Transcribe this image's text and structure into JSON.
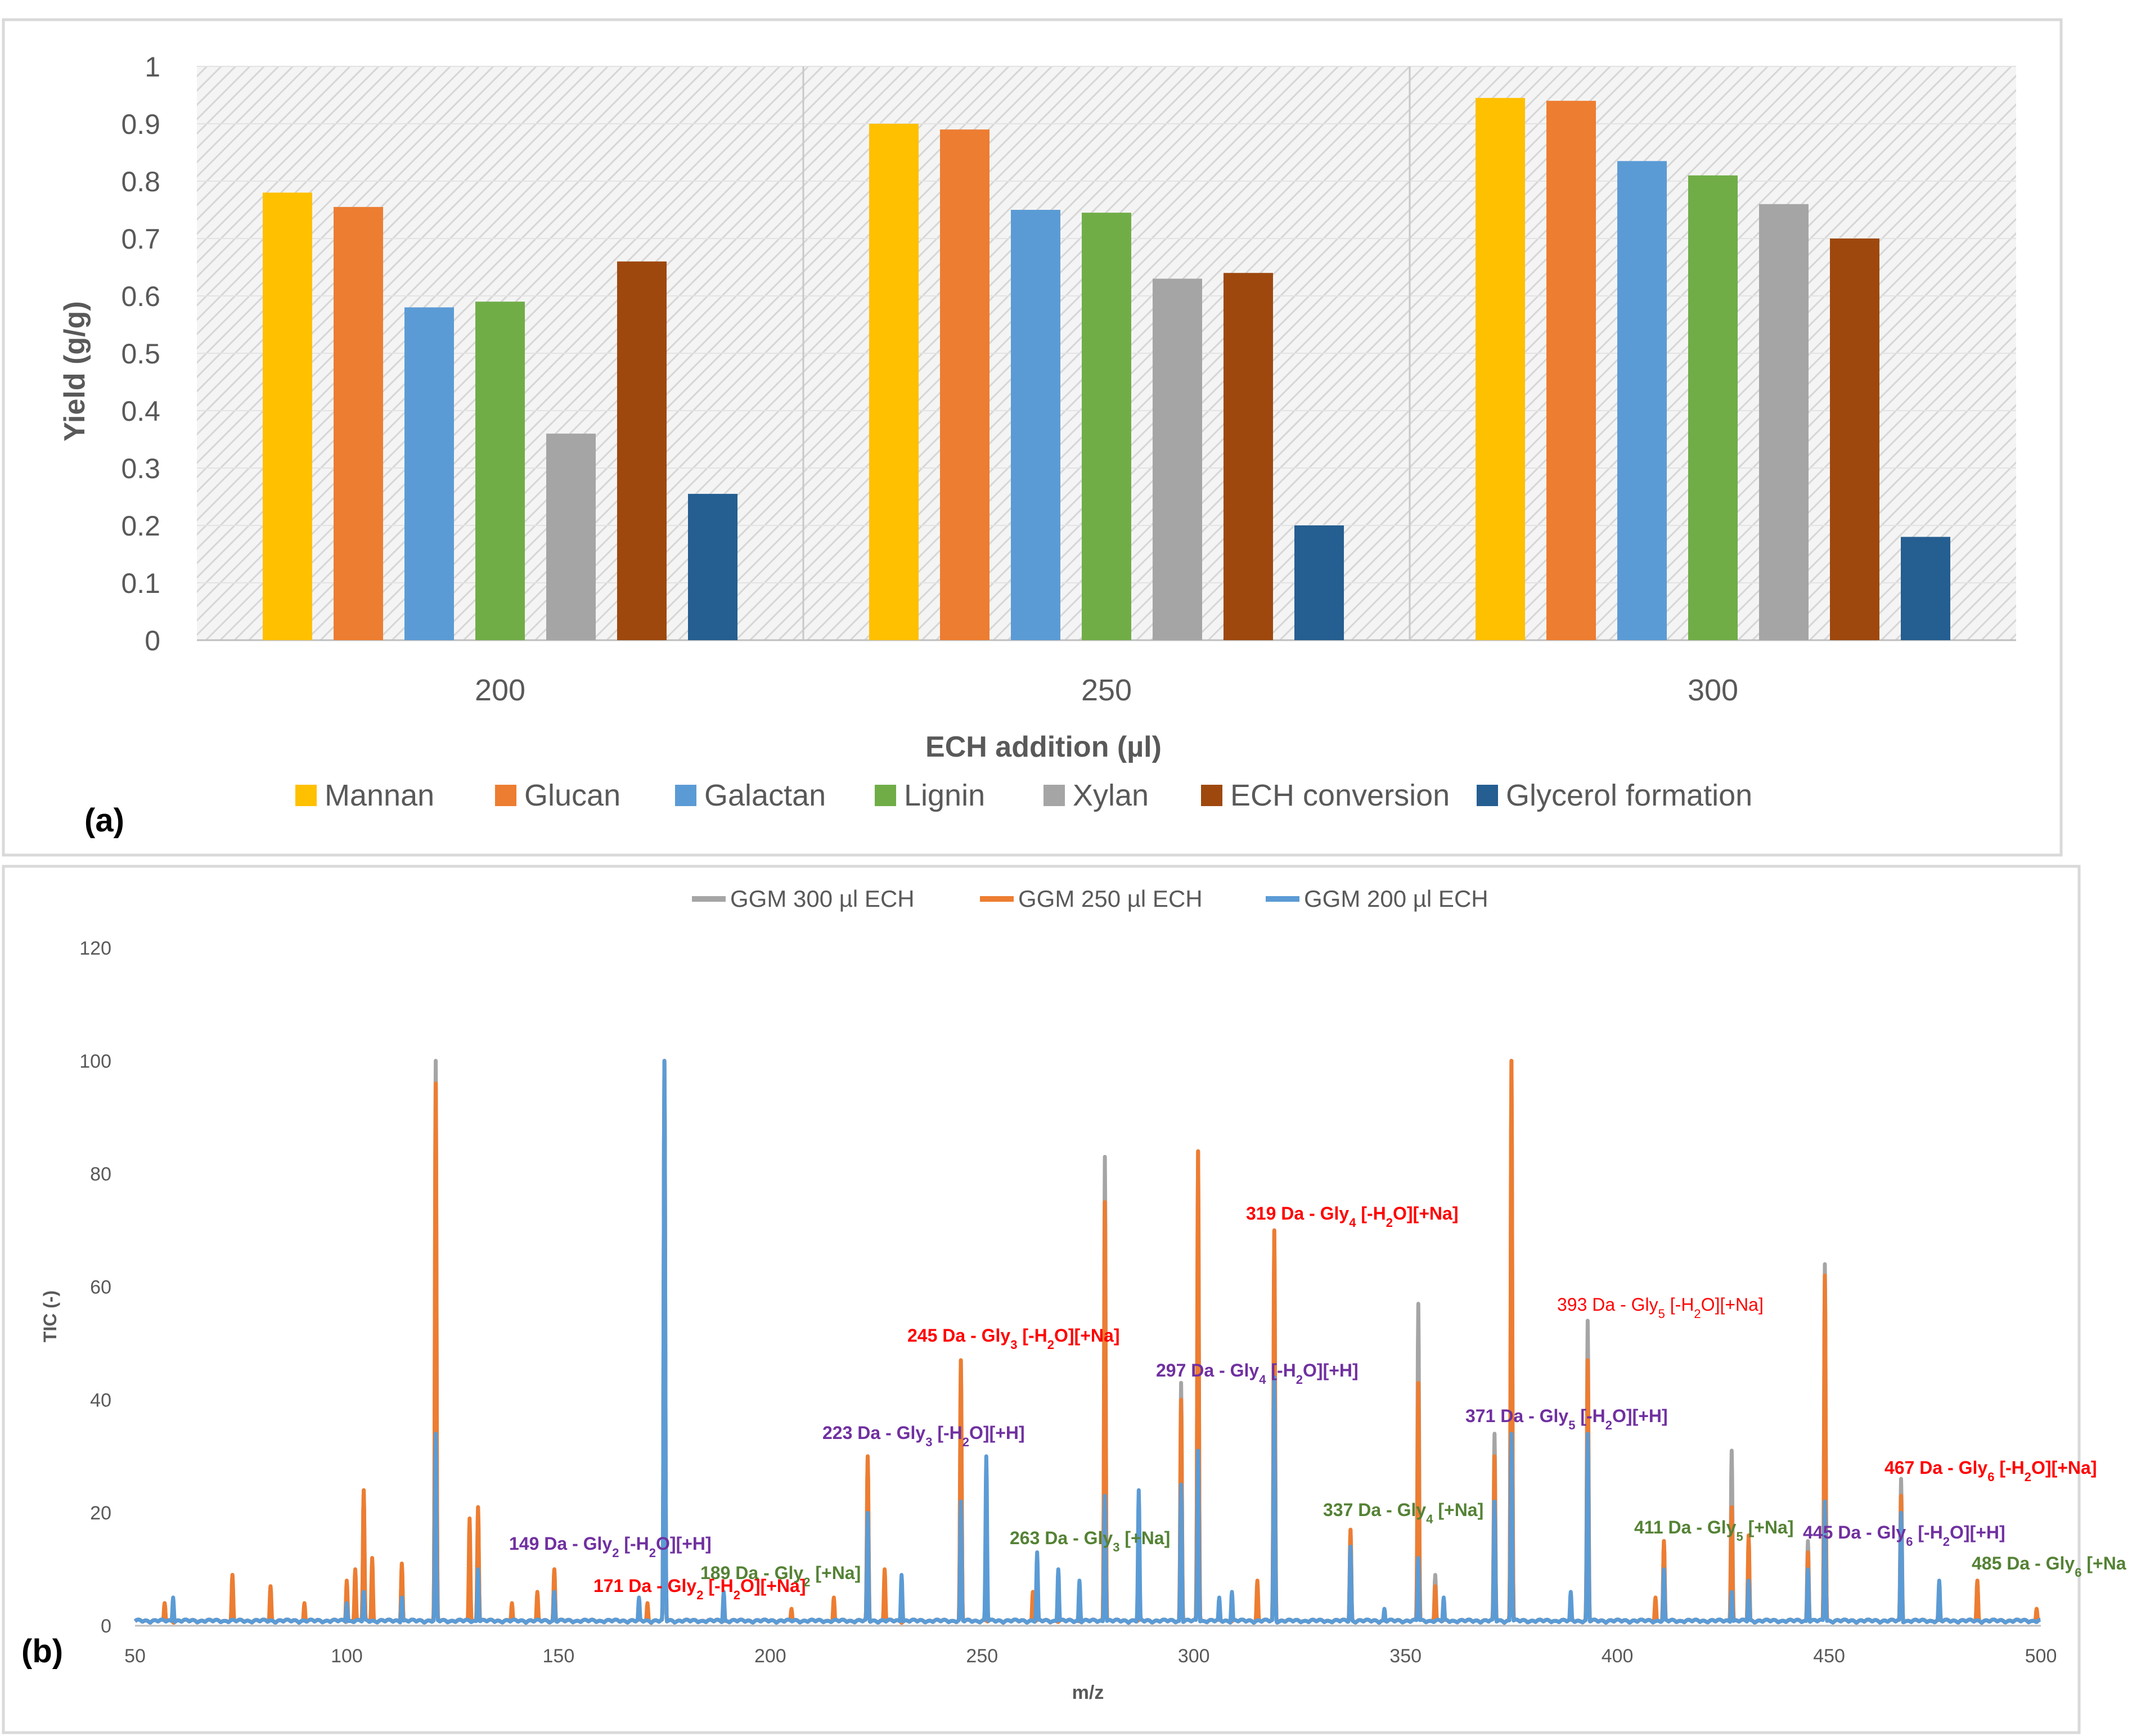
{
  "chart_data": [
    {
      "type": "bar",
      "panel_label": "(a)",
      "title": "",
      "xlabel": "ECH addition (µl)",
      "ylabel": "Yield (g/g)",
      "ylim": [
        0,
        1
      ],
      "yticks": [
        "0",
        "0.1",
        "0.2",
        "0.3",
        "0.4",
        "0.5",
        "0.6",
        "0.7",
        "0.8",
        "0.9",
        "1"
      ],
      "categories": [
        "200",
        "250",
        "300"
      ],
      "legend_position": "bottom",
      "series": [
        {
          "name": "Mannan",
          "color": "#FFC000",
          "values": [
            0.78,
            0.9,
            0.945
          ]
        },
        {
          "name": "Glucan",
          "color": "#ED7D31",
          "values": [
            0.755,
            0.89,
            0.94
          ]
        },
        {
          "name": "Galactan",
          "color": "#5B9BD5",
          "values": [
            0.58,
            0.75,
            0.835
          ]
        },
        {
          "name": "Lignin",
          "color": "#70AD47",
          "values": [
            0.59,
            0.745,
            0.81
          ]
        },
        {
          "name": "Xylan",
          "color": "#A5A5A5",
          "values": [
            0.36,
            0.63,
            0.76
          ]
        },
        {
          "name": "ECH conversion",
          "color": "#9E480E",
          "values": [
            0.66,
            0.64,
            0.7
          ]
        },
        {
          "name": "Glycerol formation",
          "color": "#255E91",
          "values": [
            0.255,
            0.2,
            0.18
          ]
        }
      ]
    },
    {
      "type": "line",
      "panel_label": "(b)",
      "title": "",
      "xlabel": "m/z",
      "ylabel": "TIC (-)",
      "xlim": [
        50,
        500
      ],
      "ylim": [
        0,
        120
      ],
      "xticks": [
        "50",
        "100",
        "150",
        "200",
        "250",
        "300",
        "350",
        "400",
        "450",
        "500"
      ],
      "yticks": [
        "0",
        "20",
        "40",
        "60",
        "80",
        "100",
        "120"
      ],
      "legend_position": "top",
      "series": [
        {
          "name": "GGM 300 µl ECH",
          "color": "#A5A5A5",
          "peaks": [
            [
              57,
              4
            ],
            [
              73,
              9
            ],
            [
              82,
              7
            ],
            [
              104,
              24
            ],
            [
              113,
              11
            ],
            [
              121,
              100
            ],
            [
              131,
              21
            ],
            [
              149,
              10
            ],
            [
              175,
              100
            ],
            [
              223,
              30
            ],
            [
              245,
              47
            ],
            [
              279,
              83
            ],
            [
              297,
              43
            ],
            [
              301,
              84
            ],
            [
              319,
              70
            ],
            [
              337,
              17
            ],
            [
              353,
              57
            ],
            [
              357,
              9
            ],
            [
              371,
              34
            ],
            [
              375,
              100
            ],
            [
              393,
              54
            ],
            [
              411,
              15
            ],
            [
              427,
              31
            ],
            [
              431,
              15
            ],
            [
              445,
              15
            ],
            [
              449,
              64
            ],
            [
              467,
              26
            ],
            [
              485,
              8
            ]
          ]
        },
        {
          "name": "GGM 250 µl ECH",
          "color": "#ED7D31",
          "peaks": [
            [
              57,
              4
            ],
            [
              73,
              9
            ],
            [
              82,
              7
            ],
            [
              90,
              4
            ],
            [
              100,
              8
            ],
            [
              102,
              10
            ],
            [
              104,
              24
            ],
            [
              106,
              12
            ],
            [
              113,
              11
            ],
            [
              121,
              96
            ],
            [
              129,
              19
            ],
            [
              131,
              21
            ],
            [
              139,
              4
            ],
            [
              145,
              6
            ],
            [
              149,
              10
            ],
            [
              171,
              4
            ],
            [
              175,
              100
            ],
            [
              205,
              3
            ],
            [
              215,
              5
            ],
            [
              223,
              30
            ],
            [
              227,
              10
            ],
            [
              245,
              47
            ],
            [
              262,
              6
            ],
            [
              279,
              75
            ],
            [
              297,
              40
            ],
            [
              301,
              84
            ],
            [
              315,
              8
            ],
            [
              319,
              70
            ],
            [
              337,
              17
            ],
            [
              353,
              43
            ],
            [
              357,
              7
            ],
            [
              371,
              30
            ],
            [
              375,
              100
            ],
            [
              393,
              47
            ],
            [
              409,
              5
            ],
            [
              411,
              15
            ],
            [
              427,
              21
            ],
            [
              431,
              16
            ],
            [
              445,
              13
            ],
            [
              449,
              62
            ],
            [
              467,
              23
            ],
            [
              485,
              8
            ],
            [
              499,
              3
            ]
          ]
        },
        {
          "name": "GGM 200 µl ECH",
          "color": "#5B9BD5",
          "peaks": [
            [
              59,
              5
            ],
            [
              100,
              4
            ],
            [
              104,
              6
            ],
            [
              113,
              5
            ],
            [
              121,
              34
            ],
            [
              131,
              10
            ],
            [
              149,
              6
            ],
            [
              169,
              5
            ],
            [
              175,
              100
            ],
            [
              189,
              6
            ],
            [
              223,
              20
            ],
            [
              231,
              9
            ],
            [
              245,
              22
            ],
            [
              251,
              30
            ],
            [
              263,
              13
            ],
            [
              268,
              10
            ],
            [
              273,
              8
            ],
            [
              279,
              23
            ],
            [
              287,
              24
            ],
            [
              297,
              25
            ],
            [
              301,
              31
            ],
            [
              306,
              5
            ],
            [
              309,
              6
            ],
            [
              319,
              44
            ],
            [
              337,
              14
            ],
            [
              345,
              3
            ],
            [
              353,
              12
            ],
            [
              359,
              5
            ],
            [
              371,
              22
            ],
            [
              375,
              34
            ],
            [
              389,
              6
            ],
            [
              393,
              34
            ],
            [
              411,
              10
            ],
            [
              427,
              6
            ],
            [
              431,
              8
            ],
            [
              445,
              10
            ],
            [
              449,
              22
            ],
            [
              467,
              20
            ],
            [
              476,
              8
            ]
          ]
        }
      ],
      "annotations": [
        {
          "mz": 149,
          "label": "149 Da - Gly",
          "sub": "2",
          "rest": " [-H",
          "sub2": "2",
          "rest2": "O][+H]",
          "color": "#7030A0",
          "bold": true
        },
        {
          "mz": 171,
          "label": "171 Da - Gly",
          "sub": "2",
          "rest": " [-H",
          "sub2": "2",
          "rest2": "O][+Na]",
          "color": "#FF0000",
          "bold": true
        },
        {
          "mz": 189,
          "label": "189 Da - Gly",
          "sub": "2",
          "rest": " [+Na]",
          "sub2": "",
          "rest2": "",
          "color": "#548235",
          "bold": true
        },
        {
          "mz": 223,
          "label": "223 Da - Gly",
          "sub": "3",
          "rest": " [-H",
          "sub2": "2",
          "rest2": "O][+H]",
          "color": "#7030A0",
          "bold": true
        },
        {
          "mz": 245,
          "label": "245 Da - Gly",
          "sub": "3",
          "rest": " [-H",
          "sub2": "2",
          "rest2": "O][+Na]",
          "color": "#FF0000",
          "bold": true
        },
        {
          "mz": 263,
          "label": "263 Da - Gly",
          "sub": "3",
          "rest": " [+Na]",
          "sub2": "",
          "rest2": "",
          "color": "#548235",
          "bold": true
        },
        {
          "mz": 297,
          "label": "297 Da - Gly",
          "sub": "4",
          "rest": " [-H",
          "sub2": "2",
          "rest2": "O][+H]",
          "color": "#7030A0",
          "bold": true
        },
        {
          "mz": 319,
          "label": "319 Da - Gly",
          "sub": "4",
          "rest": " [-H",
          "sub2": "2",
          "rest2": "O][+Na]",
          "color": "#FF0000",
          "bold": true
        },
        {
          "mz": 337,
          "label": "337 Da - Gly",
          "sub": "4",
          "rest": " [+Na]",
          "sub2": "",
          "rest2": "",
          "color": "#548235",
          "bold": true
        },
        {
          "mz": 371,
          "label": "371 Da - Gly",
          "sub": "5",
          "rest": " [-H",
          "sub2": "2",
          "rest2": "O][+H]",
          "color": "#7030A0",
          "bold": true
        },
        {
          "mz": 393,
          "label": "393 Da - Gly",
          "sub": "5",
          "rest": " [-H",
          "sub2": "2",
          "rest2": "O][+Na]",
          "color": "#FF0000",
          "bold": false
        },
        {
          "mz": 411,
          "label": "411 Da - Gly",
          "sub": "5",
          "rest": " [+Na]",
          "sub2": "",
          "rest2": "",
          "color": "#548235",
          "bold": true
        },
        {
          "mz": 445,
          "label": "445 Da - Gly",
          "sub": "6",
          "rest": " [-H",
          "sub2": "2",
          "rest2": "O][+H]",
          "color": "#7030A0",
          "bold": true
        },
        {
          "mz": 467,
          "label": "467 Da - Gly",
          "sub": "6",
          "rest": " [-H",
          "sub2": "2",
          "rest2": "O][+Na]",
          "color": "#FF0000",
          "bold": true
        },
        {
          "mz": 485,
          "label": "485 Da - Gly",
          "sub": "6",
          "rest": " [+Na",
          "sub2": "",
          "rest2": "",
          "color": "#548235",
          "bold": true
        }
      ]
    }
  ]
}
